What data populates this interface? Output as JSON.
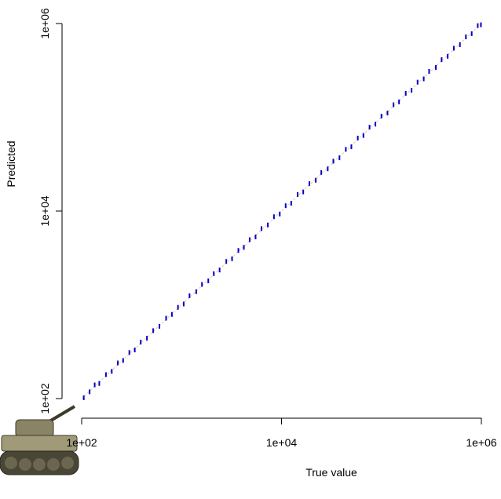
{
  "chart_data": {
    "type": "scatter",
    "x_label": "True value",
    "y_label": "Predicted",
    "log_x": true,
    "log_y": true,
    "xlim": [
      100,
      1000000
    ],
    "ylim": [
      100,
      1000000
    ],
    "xticks": [
      {
        "value": 100,
        "label": "1e+02"
      },
      {
        "value": 10000,
        "label": "1e+04"
      },
      {
        "value": 1000000,
        "label": "1e+06"
      }
    ],
    "yticks": [
      {
        "value": 100,
        "label": "1e+02"
      },
      {
        "value": 10000,
        "label": "1e+04"
      },
      {
        "value": 1000000,
        "label": "1e+06"
      }
    ],
    "color": "#0000cc",
    "reference_line_color": "#e8c9a0",
    "x": [
      105,
      120,
      135,
      150,
      175,
      200,
      230,
      260,
      300,
      340,
      390,
      450,
      520,
      600,
      700,
      800,
      920,
      1050,
      1200,
      1400,
      1600,
      1850,
      2100,
      2400,
      2800,
      3200,
      3700,
      4200,
      4800,
      5500,
      6300,
      7300,
      8400,
      9600,
      11000,
      12500,
      14500,
      16500,
      19000,
      22000,
      25000,
      29000,
      33000,
      38000,
      44000,
      50000,
      58000,
      66000,
      76000,
      87000,
      100000,
      115000,
      132000,
      150000,
      175000,
      200000,
      230000,
      265000,
      300000,
      350000,
      400000,
      460000,
      530000,
      610000,
      700000,
      800000,
      920000,
      990000
    ],
    "y": [
      102,
      118,
      140,
      145,
      180,
      195,
      240,
      255,
      310,
      330,
      400,
      440,
      530,
      590,
      720,
      790,
      940,
      1020,
      1250,
      1380,
      1650,
      1800,
      2150,
      2350,
      2900,
      3100,
      3800,
      4100,
      4950,
      5300,
      6500,
      7100,
      8700,
      9300,
      11400,
      12100,
      15000,
      16000,
      19600,
      21300,
      25800,
      28200,
      34000,
      37000,
      45500,
      48500,
      60000,
      64000,
      78500,
      84500,
      103000,
      111000,
      136000,
      146000,
      180000,
      194000,
      237000,
      257000,
      309000,
      340000,
      412000,
      447000,
      545000,
      595000,
      720000,
      780000,
      950000,
      970000
    ]
  }
}
